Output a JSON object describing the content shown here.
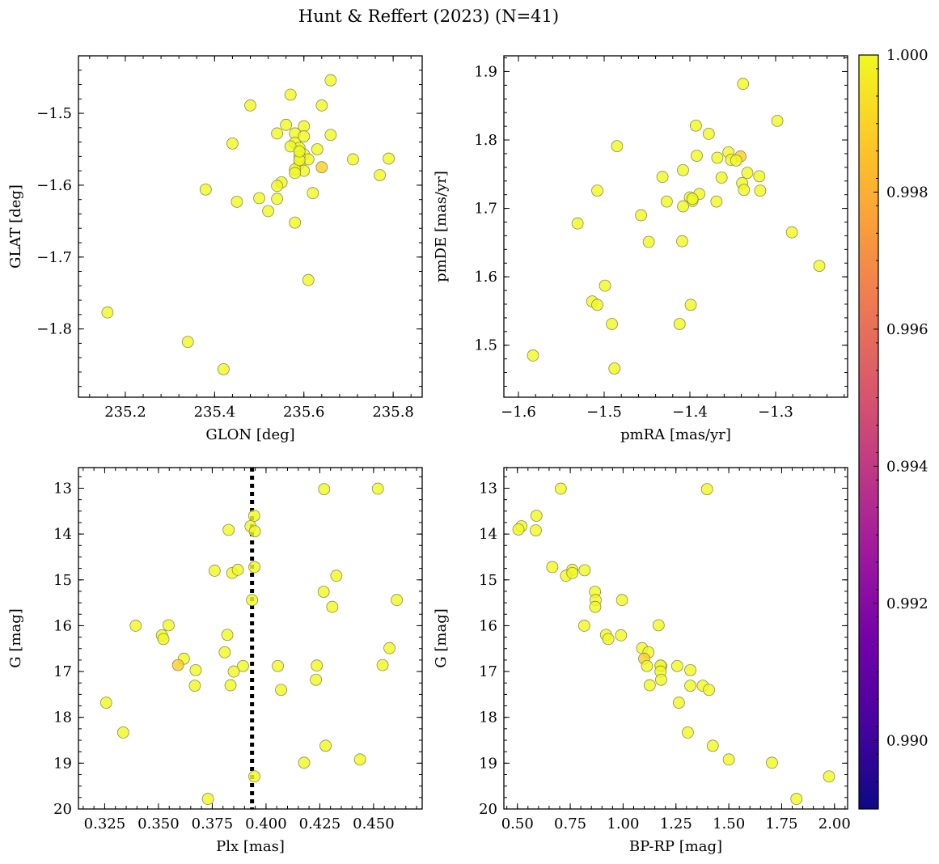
{
  "figure": {
    "title": "Hunt & Reffert (2023) (N=41)"
  },
  "colors": {
    "member_high": "#f0f921",
    "member_mid": "#fcce25",
    "member_low": "#fba238",
    "colorbar_stops": [
      "#0d0887",
      "#46039f",
      "#7201a8",
      "#9c179e",
      "#bd3786",
      "#d8576b",
      "#ed7953",
      "#fb9f3a",
      "#fdca26",
      "#f0f921"
    ]
  },
  "colorbar": {
    "min": 0.989,
    "max": 1.0,
    "ticks": [
      0.99,
      0.992,
      0.994,
      0.996,
      0.998,
      1.0
    ],
    "tick_labels": [
      "0.990",
      "0.992",
      "0.994",
      "0.996",
      "0.998",
      "1.000"
    ]
  },
  "chart_data": [
    {
      "type": "scatter",
      "id": "glon-glat",
      "xlabel": "GLON [deg]",
      "ylabel": "GLAT [deg]",
      "xlim": [
        235.095,
        235.865
      ],
      "ylim": [
        -1.895,
        -1.42
      ],
      "xticks": [
        235.2,
        235.4,
        235.6,
        235.8
      ],
      "xtick_labels": [
        "235.2",
        "235.4",
        "235.6",
        "235.8"
      ],
      "yticks": [
        -1.8,
        -1.7,
        -1.6,
        -1.5
      ],
      "ytick_labels": [
        "−1.8",
        "−1.7",
        "−1.6",
        "−1.5"
      ],
      "x": [
        235.66,
        235.48,
        235.57,
        235.64,
        235.56,
        235.6,
        235.54,
        235.58,
        235.66,
        235.58,
        235.6,
        235.44,
        235.63,
        235.59,
        235.6,
        235.57,
        235.61,
        235.71,
        235.79,
        235.59,
        235.64,
        235.6,
        235.58,
        235.77,
        235.55,
        235.54,
        235.38,
        235.62,
        235.5,
        235.45,
        235.54,
        235.52,
        235.58,
        235.61,
        235.16,
        235.34,
        235.42,
        235.59,
        235.59,
        235.59,
        235.58
      ],
      "y": [
        -1.454,
        -1.489,
        -1.474,
        -1.489,
        -1.516,
        -1.518,
        -1.528,
        -1.528,
        -1.53,
        -1.541,
        -1.532,
        -1.542,
        -1.55,
        -1.548,
        -1.557,
        -1.546,
        -1.564,
        -1.564,
        -1.563,
        -1.57,
        -1.575,
        -1.58,
        -1.578,
        -1.586,
        -1.596,
        -1.601,
        -1.606,
        -1.611,
        -1.618,
        -1.623,
        -1.619,
        -1.636,
        -1.652,
        -1.732,
        -1.777,
        -1.818,
        -1.856,
        -1.56,
        -1.565,
        -1.553,
        -1.583
      ],
      "prob": [
        1,
        1,
        1,
        1,
        1,
        1,
        1,
        1,
        1,
        1,
        1,
        1,
        1,
        1,
        1,
        1,
        1,
        1,
        1,
        1,
        0.9983,
        1,
        1,
        1,
        1,
        1,
        1,
        1,
        1,
        1,
        1,
        1,
        1,
        1,
        1,
        1,
        1,
        1,
        1,
        1,
        1
      ]
    },
    {
      "type": "scatter",
      "id": "pm",
      "xlabel": "pmRA [mas/yr]",
      "ylabel": "pmDE [mas/yr]",
      "xlim": [
        -1.617,
        -1.216
      ],
      "ylim": [
        1.424,
        1.923
      ],
      "xticks": [
        -1.6,
        -1.5,
        -1.4,
        -1.3
      ],
      "xtick_labels": [
        "−1.6",
        "−1.5",
        "−1.4",
        "−1.3"
      ],
      "yticks": [
        1.5,
        1.6,
        1.7,
        1.8,
        1.9
      ],
      "ytick_labels": [
        "1.5",
        "1.6",
        "1.7",
        "1.8",
        "1.9"
      ],
      "x": [
        -1.338,
        -1.298,
        -1.393,
        -1.378,
        -1.485,
        -1.392,
        -1.341,
        -1.355,
        -1.368,
        -1.352,
        -1.333,
        -1.346,
        -1.408,
        -1.432,
        -1.319,
        -1.363,
        -1.339,
        -1.337,
        -1.508,
        -1.318,
        -1.389,
        -1.4,
        -1.397,
        -1.531,
        -1.457,
        -1.369,
        -1.397,
        -1.427,
        -1.408,
        -1.281,
        -1.448,
        -1.409,
        -1.249,
        -1.499,
        -1.514,
        -1.508,
        -1.399,
        -1.491,
        -1.412,
        -1.583,
        -1.488
      ],
      "y": [
        1.882,
        1.828,
        1.821,
        1.809,
        1.791,
        1.777,
        1.776,
        1.782,
        1.774,
        1.771,
        1.752,
        1.77,
        1.756,
        1.746,
        1.747,
        1.745,
        1.737,
        1.727,
        1.726,
        1.726,
        1.721,
        1.716,
        1.711,
        1.678,
        1.69,
        1.71,
        1.714,
        1.71,
        1.703,
        1.665,
        1.651,
        1.652,
        1.616,
        1.587,
        1.564,
        1.559,
        1.559,
        1.531,
        1.531,
        1.485,
        1.466
      ],
      "prob": [
        1,
        1,
        1,
        1,
        1,
        1,
        0.9983,
        1,
        1,
        1,
        1,
        1,
        1,
        1,
        1,
        1,
        1,
        1,
        1,
        1,
        1,
        1,
        1,
        1,
        1,
        1,
        1,
        1,
        1,
        1,
        1,
        1,
        1,
        1,
        1,
        1,
        1,
        1,
        1,
        1,
        1
      ]
    },
    {
      "type": "scatter",
      "id": "plx-g",
      "xlabel": "Plx [mas]",
      "ylabel": "G [mag]",
      "xlim": [
        0.3128,
        0.4726
      ],
      "ylim": [
        20.0,
        12.55
      ],
      "y_inverted": true,
      "xticks": [
        0.325,
        0.35,
        0.375,
        0.4,
        0.425,
        0.45
      ],
      "xtick_labels": [
        "0.325",
        "0.350",
        "0.375",
        "0.400",
        "0.425",
        "0.450"
      ],
      "yticks": [
        13,
        14,
        15,
        16,
        17,
        18,
        19,
        20
      ],
      "ytick_labels": [
        "13",
        "14",
        "15",
        "16",
        "17",
        "18",
        "19",
        "20"
      ],
      "reference_line": {
        "x": 0.3935,
        "style": "dotted"
      },
      "x": [
        0.427,
        0.452,
        0.3945,
        0.3928,
        0.3948,
        0.3826,
        0.3946,
        0.3935,
        0.3843,
        0.3761,
        0.3869,
        0.4327,
        0.4268,
        0.4308,
        0.4608,
        0.3394,
        0.3547,
        0.3516,
        0.3523,
        0.382,
        0.4574,
        0.3808,
        0.3618,
        0.3673,
        0.4236,
        0.3893,
        0.3591,
        0.4055,
        0.4542,
        0.407,
        0.3835,
        0.3669,
        0.4232,
        0.3257,
        0.3336,
        0.4277,
        0.4177,
        0.4437,
        0.3946,
        0.373,
        0.385
      ],
      "y": [
        13.02,
        13.01,
        13.6,
        13.83,
        13.94,
        13.91,
        14.72,
        15.44,
        14.85,
        14.8,
        14.78,
        14.91,
        15.26,
        15.59,
        15.44,
        16.0,
        15.99,
        16.21,
        16.29,
        16.2,
        16.49,
        16.58,
        16.72,
        16.97,
        16.87,
        16.88,
        16.86,
        16.88,
        16.86,
        17.4,
        17.3,
        17.31,
        17.18,
        17.68,
        18.33,
        18.62,
        18.99,
        18.92,
        19.29,
        19.78,
        17.0
      ],
      "prob": [
        1,
        1,
        1,
        1,
        1,
        1,
        1,
        1,
        1,
        1,
        1,
        1,
        1,
        1,
        1,
        1,
        1,
        1,
        1,
        1,
        1,
        1,
        1,
        1,
        1,
        1,
        0.9983,
        1,
        1,
        1,
        1,
        1,
        1,
        1,
        1,
        1,
        1,
        1,
        1,
        1,
        1
      ]
    },
    {
      "type": "scatter",
      "id": "cmd",
      "xlabel": "BP-RP [mag]",
      "ylabel": "G [mag]",
      "xlim": [
        0.436,
        2.062
      ],
      "ylim": [
        20.0,
        12.55
      ],
      "y_inverted": true,
      "xticks": [
        0.5,
        0.75,
        1.0,
        1.25,
        1.5,
        1.75,
        2.0
      ],
      "xtick_labels": [
        "0.50",
        "0.75",
        "1.00",
        "1.25",
        "1.50",
        "1.75",
        "2.00"
      ],
      "yticks": [
        13,
        14,
        15,
        16,
        17,
        18,
        19,
        20
      ],
      "ytick_labels": [
        "13",
        "14",
        "15",
        "16",
        "17",
        "18",
        "19",
        "20"
      ],
      "x": [
        0.705,
        1.397,
        0.59,
        0.519,
        0.505,
        0.587,
        0.665,
        0.76,
        0.73,
        0.76,
        0.818,
        0.867,
        0.87,
        0.868,
        0.995,
        0.816,
        1.168,
        0.919,
        0.93,
        0.99,
        1.09,
        1.12,
        1.1,
        1.18,
        1.113,
        1.177,
        1.256,
        1.177,
        1.318,
        1.18,
        1.126,
        1.318,
        1.377,
        1.406,
        1.264,
        1.306,
        1.424,
        1.5,
        1.704,
        1.82,
        1.974
      ],
      "y": [
        13.01,
        13.02,
        13.6,
        13.83,
        13.9,
        13.92,
        14.72,
        14.78,
        14.91,
        14.85,
        14.79,
        15.26,
        15.44,
        15.59,
        15.44,
        16.0,
        15.99,
        16.2,
        16.29,
        16.21,
        16.49,
        16.58,
        16.72,
        16.88,
        16.88,
        16.87,
        16.88,
        17.0,
        16.97,
        17.18,
        17.3,
        17.31,
        17.31,
        17.4,
        17.68,
        18.33,
        18.62,
        18.92,
        18.99,
        19.78,
        19.29
      ],
      "prob": [
        1,
        1,
        1,
        1,
        1,
        1,
        1,
        1,
        1,
        1,
        1,
        1,
        1,
        1,
        1,
        1,
        1,
        1,
        1,
        1,
        1,
        1,
        0.9983,
        1,
        1,
        1,
        1,
        1,
        1,
        1,
        1,
        1,
        1,
        1,
        1,
        1,
        1,
        1,
        1,
        1,
        1
      ]
    }
  ]
}
